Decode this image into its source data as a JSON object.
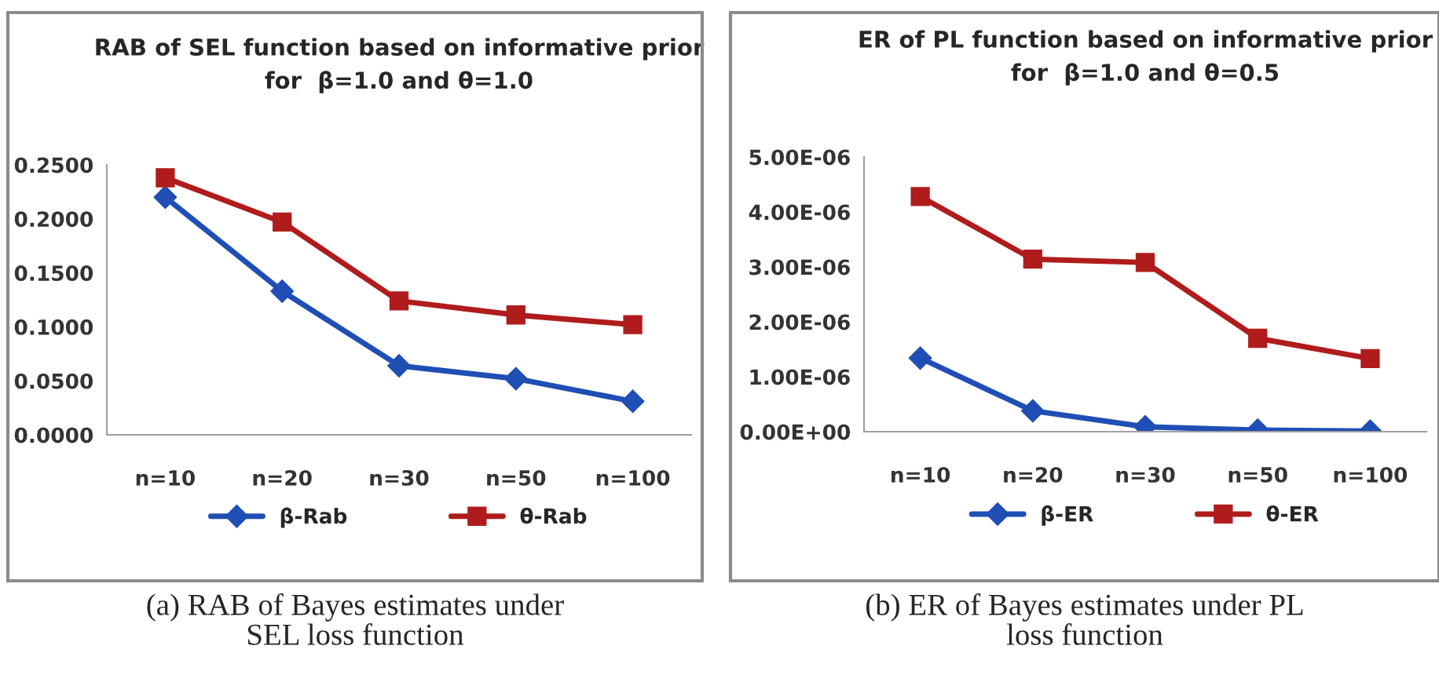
{
  "chart_data": [
    {
      "type": "line",
      "title": "RAB of SEL function based on informative prior\nfor  β=1.0 and θ=1.0",
      "categories": [
        "n=10",
        "n=20",
        "n=30",
        "n=50",
        "n=100"
      ],
      "series": [
        {
          "name": "β-Rab",
          "color": "#1f4fb4",
          "marker": "diamond",
          "values": [
            0.22,
            0.133,
            0.064,
            0.052,
            0.031
          ]
        },
        {
          "name": "θ-Rab",
          "color": "#b01c1c",
          "marker": "square",
          "values": [
            0.238,
            0.197,
            0.124,
            0.111,
            0.102
          ]
        }
      ],
      "ylim": [
        0,
        0.25
      ],
      "yticks": [
        {
          "value": 0,
          "label": "0.0000"
        },
        {
          "value": 0.05,
          "label": "0.0500"
        },
        {
          "value": 0.1,
          "label": "0.1000"
        },
        {
          "value": 0.15,
          "label": "0.1500"
        },
        {
          "value": 0.2,
          "label": "0.2000"
        },
        {
          "value": 0.25,
          "label": "0.2500"
        }
      ],
      "grid": false,
      "legend": "bottom",
      "line_style": "solid",
      "annotations": [
        "(a) RAB of Bayes estimates under\nSEL loss function"
      ]
    },
    {
      "type": "line",
      "title": "ER of PL function based on informative prior\nfor  β=1.0 and θ=0.5",
      "categories": [
        "n=10",
        "n=20",
        "n=30",
        "n=50",
        "n=100"
      ],
      "series": [
        {
          "name": "β-ER",
          "color": "#1f4fb4",
          "marker": "diamond",
          "values": [
            1.34e-06,
            3.8e-07,
            9e-08,
            3e-08,
            1e-08
          ]
        },
        {
          "name": "θ-ER",
          "color": "#b01c1c",
          "marker": "square",
          "values": [
            4.28e-06,
            3.14e-06,
            3.08e-06,
            1.7e-06,
            1.33e-06
          ]
        }
      ],
      "ylim": [
        0,
        5e-06
      ],
      "yticks": [
        {
          "value": 0,
          "label": "0.00E+00"
        },
        {
          "value": 1e-06,
          "label": "1.00E-06"
        },
        {
          "value": 2e-06,
          "label": "2.00E-06"
        },
        {
          "value": 3e-06,
          "label": "3.00E-06"
        },
        {
          "value": 4e-06,
          "label": "4.00E-06"
        },
        {
          "value": 5e-06,
          "label": "5.00E-06"
        }
      ],
      "grid": false,
      "legend": "bottom",
      "line_style": "solid",
      "annotations": [
        "(b) ER of Bayes estimates under PL\nloss function"
      ]
    }
  ]
}
